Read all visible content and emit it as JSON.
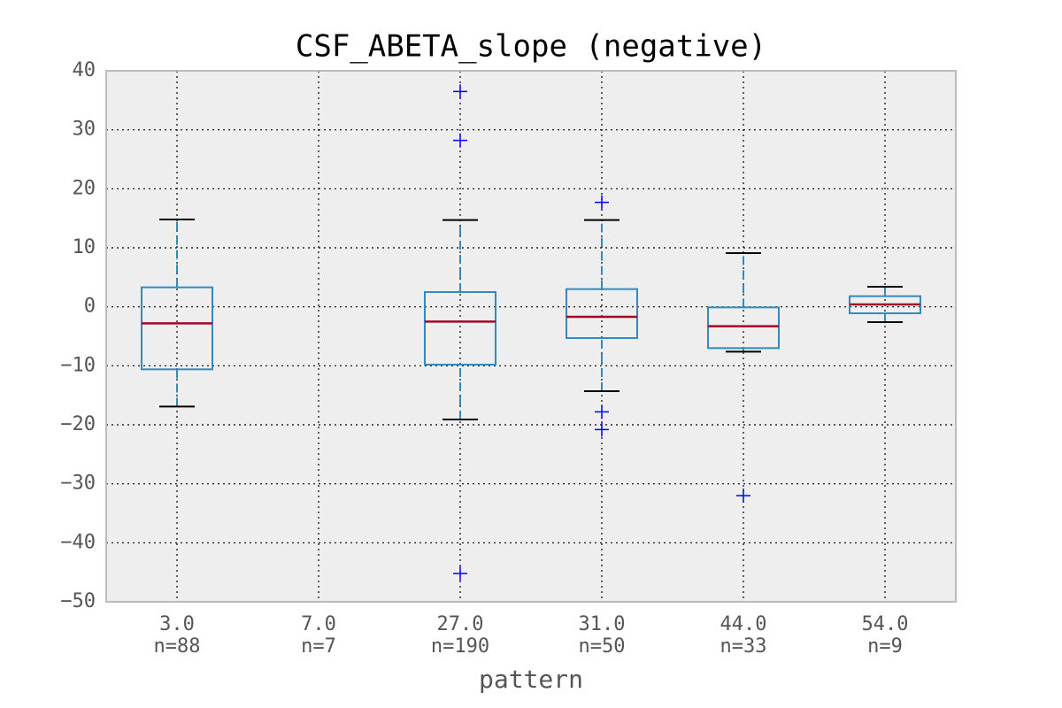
{
  "chart_data": {
    "type": "box",
    "title": "CSF_ABETA_slope (negative)",
    "x_label": "pattern",
    "categories": [
      "3.0",
      "7.0",
      "27.0",
      "31.0",
      "44.0",
      "54.0"
    ],
    "n_labels": [
      "n=88",
      "n=7",
      "n=190",
      "n=50",
      "n=33",
      "n=9"
    ],
    "boxes": [
      {
        "whislo": -16.9,
        "q1": -10.6,
        "med": -2.8,
        "q3": 3.3,
        "whishi": 14.8,
        "fliers": []
      },
      null,
      {
        "whislo": -19.1,
        "q1": -9.8,
        "med": -2.5,
        "q3": 2.5,
        "whishi": 14.7,
        "fliers": [
          36.5,
          28.2,
          -45.2
        ]
      },
      {
        "whislo": -14.3,
        "q1": -5.3,
        "med": -1.7,
        "q3": 3.0,
        "whishi": 14.7,
        "fliers": [
          17.7,
          -17.8,
          -20.8
        ]
      },
      {
        "whislo": -7.6,
        "q1": -7.0,
        "med": -3.3,
        "q3": -0.1,
        "whishi": 9.1,
        "fliers": [
          -32.0
        ]
      },
      {
        "whislo": -2.6,
        "q1": -1.1,
        "med": 0.4,
        "q3": 1.8,
        "whishi": 3.4,
        "fliers": []
      }
    ],
    "box_color": "#348abd",
    "median_color": "#a60628",
    "cap_color": "#000000",
    "flier_color": "#0000ff",
    "ylim": [
      -50,
      40
    ],
    "yticks": [
      {
        "value": -50,
        "label": "−50"
      },
      {
        "value": -40,
        "label": "−40"
      },
      {
        "value": -30,
        "label": "−30"
      },
      {
        "value": -20,
        "label": "−20"
      },
      {
        "value": -10,
        "label": "−10"
      },
      0,
      10,
      20,
      30,
      40
    ],
    "grid": true
  }
}
